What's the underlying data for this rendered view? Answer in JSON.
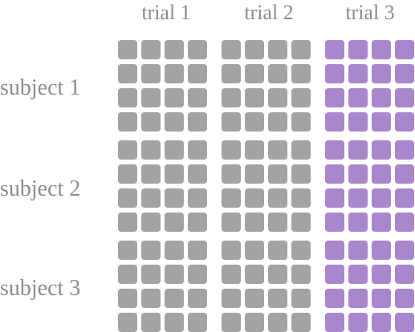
{
  "columns": [
    {
      "label": "trial 1",
      "color": "#a3a3a3"
    },
    {
      "label": "trial 2",
      "color": "#a3a3a3"
    },
    {
      "label": "trial 3",
      "color": "#a987cc"
    }
  ],
  "rows": [
    {
      "label": "subject 1"
    },
    {
      "label": "subject 2"
    },
    {
      "label": "subject 3"
    }
  ],
  "cells_per_block": 16
}
